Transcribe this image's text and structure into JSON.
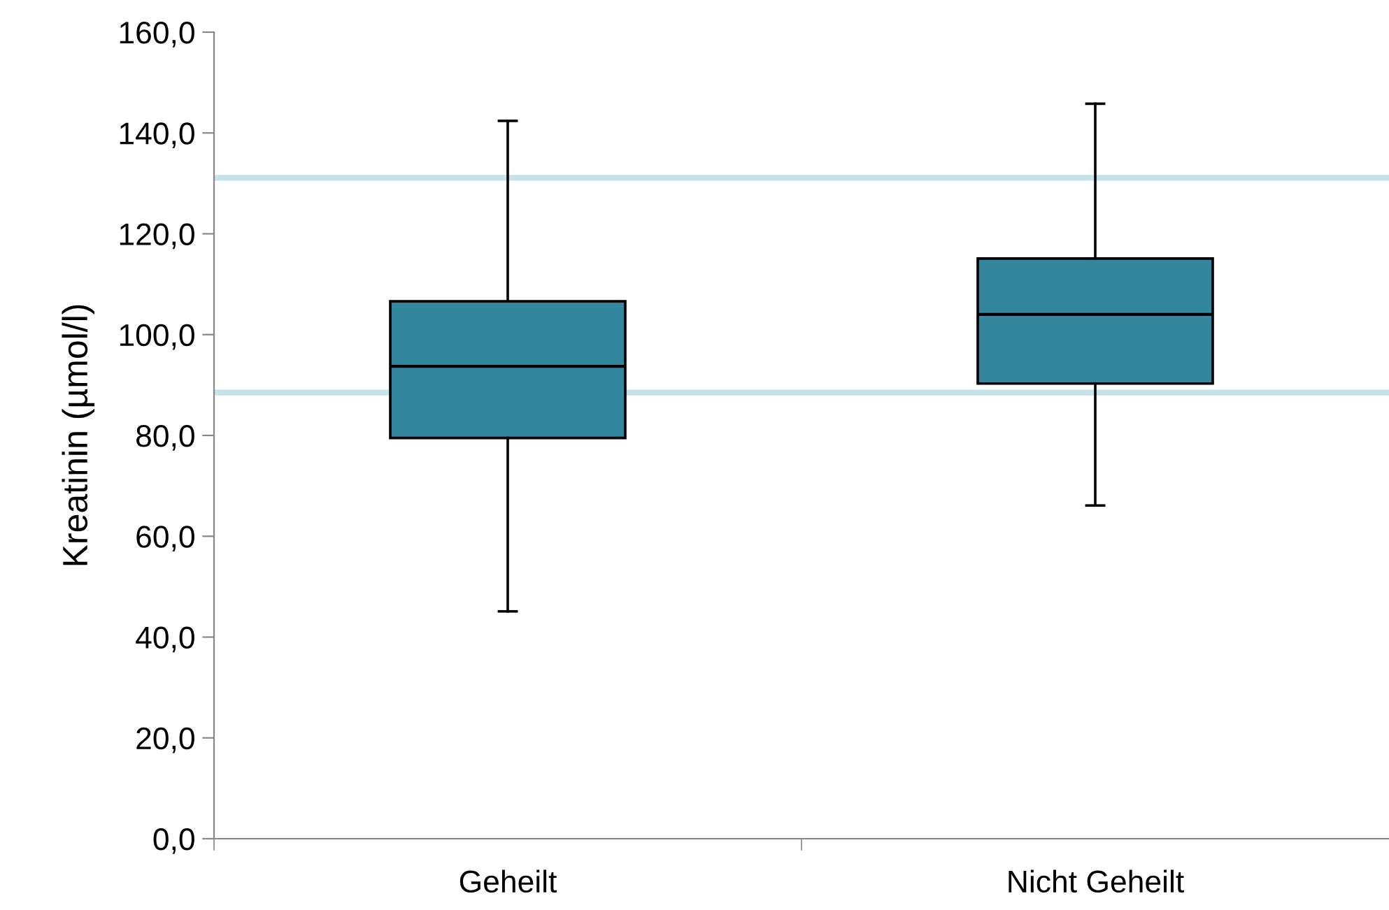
{
  "chart_data": {
    "type": "box",
    "ylabel": "Kreatinin (µmol/l)",
    "categories": [
      "Geheilt",
      "Nicht Geheilt"
    ],
    "boxes": [
      {
        "low": 45.1,
        "q1": 79.5,
        "median": 93.7,
        "q3": 106.6,
        "high": 142.4
      },
      {
        "low": 66.1,
        "q1": 90.3,
        "median": 104.0,
        "q3": 115.1,
        "high": 145.8
      }
    ],
    "color": "#33869e",
    "ylim": [
      0,
      160
    ],
    "yticks": [
      {
        "value": 0,
        "label": "0,0"
      },
      {
        "value": 20,
        "label": "20,0"
      },
      {
        "value": 40,
        "label": "40,0"
      },
      {
        "value": 60,
        "label": "60,0"
      },
      {
        "value": 80,
        "label": "80,0"
      },
      {
        "value": 100,
        "label": "100,0"
      },
      {
        "value": 120,
        "label": "120,0"
      },
      {
        "value": 140,
        "label": "140,0"
      },
      {
        "value": 160,
        "label": "160,0"
      }
    ],
    "ref_lines": [
      {
        "axis": "y",
        "value": 131.1,
        "color": "#c5e3ea"
      },
      {
        "axis": "y",
        "value": 88.5,
        "color": "#c5e3ea"
      }
    ],
    "grid": false
  }
}
